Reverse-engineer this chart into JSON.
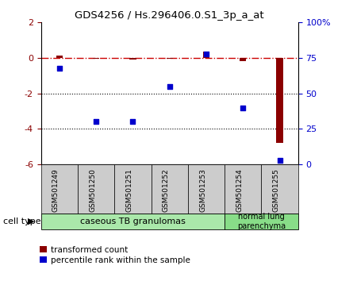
{
  "title": "GDS4256 / Hs.296406.0.S1_3p_a_at",
  "samples": [
    "GSM501249",
    "GSM501250",
    "GSM501251",
    "GSM501252",
    "GSM501253",
    "GSM501254",
    "GSM501255"
  ],
  "transformed_count": [
    0.15,
    -0.05,
    -0.1,
    -0.05,
    0.35,
    -0.2,
    -4.8
  ],
  "percentile_rank": [
    68,
    30,
    30,
    55,
    78,
    40,
    3
  ],
  "ylim_left": [
    -6,
    2
  ],
  "ylim_right": [
    0,
    100
  ],
  "yticks_left": [
    2,
    0,
    -2,
    -4,
    -6
  ],
  "yticks_right": [
    100,
    75,
    50,
    25,
    0
  ],
  "dotted_hlines": [
    -2,
    -4
  ],
  "bar_color": "#8B0000",
  "scatter_color": "#0000CC",
  "hline_color": "#CC0000",
  "group_box_color": "#cccccc",
  "group1_color": "#aae8aa",
  "group2_color": "#88dd88",
  "legend_red_label": "transformed count",
  "legend_blue_label": "percentile rank within the sample",
  "cell_type_label": "cell type",
  "group1_label": "caseous TB granulomas",
  "group2_label": "normal lung\nparenchyma",
  "group1_samples": 5,
  "group2_samples": 2
}
